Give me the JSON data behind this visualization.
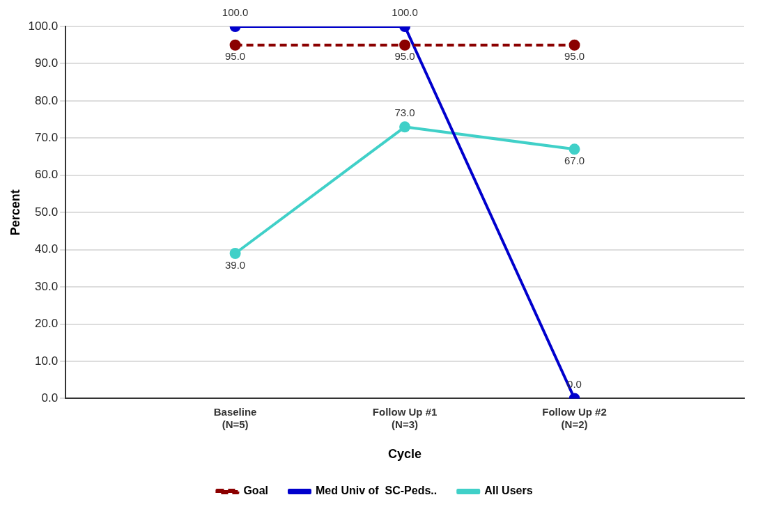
{
  "chart_data": {
    "type": "line",
    "xlabel": "Cycle",
    "ylabel": "Percent",
    "categories": [
      null,
      "Baseline\n(N=5)",
      "Follow Up #1\n(N=3)",
      "Follow Up #2\n(N=2)",
      null
    ],
    "series": [
      {
        "name": "Goal",
        "color": "#8b0000",
        "values": [
          null,
          95,
          95,
          95,
          null
        ],
        "line_style": "dashed",
        "value_labels": [
          null,
          "95.0",
          "95.0",
          "95.0",
          null
        ]
      },
      {
        "name": "Med Univ of  SC-Peds..",
        "color": "#0000cd",
        "values": [
          null,
          100,
          100,
          0,
          null
        ],
        "line_style": "solid",
        "value_labels": [
          null,
          "100.0",
          "100.0",
          "0.0",
          null
        ]
      },
      {
        "name": "All Users",
        "color": "#40d0c8",
        "values": [
          null,
          39,
          73,
          67,
          null
        ],
        "line_style": "solid",
        "value_labels": [
          null,
          "39.0",
          "73.0",
          "67.0",
          null
        ]
      }
    ],
    "ylim": [
      0,
      100
    ],
    "yticks": [
      {
        "value": 0,
        "label": "0.0"
      },
      {
        "value": 10,
        "label": "10.0"
      },
      {
        "value": 20,
        "label": "20.0"
      },
      {
        "value": 30,
        "label": "30.0"
      },
      {
        "value": 40,
        "label": "40.0"
      },
      {
        "value": 50,
        "label": "50.0"
      },
      {
        "value": 60,
        "label": "60.0"
      },
      {
        "value": 70,
        "label": "70.0"
      },
      {
        "value": 80,
        "label": "80.0"
      },
      {
        "value": 90,
        "label": "90.0"
      },
      {
        "value": 100,
        "label": "100.0"
      }
    ],
    "grid": "y",
    "legend": "bottom",
    "marker": "circle"
  }
}
